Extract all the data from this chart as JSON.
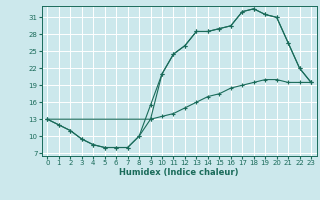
{
  "title": "",
  "xlabel": "Humidex (Indice chaleur)",
  "bg_color": "#cce8ec",
  "grid_color": "#ffffff",
  "line_color": "#1a6b5a",
  "xlim": [
    -0.5,
    23.5
  ],
  "ylim": [
    6.5,
    33
  ],
  "yticks": [
    7,
    10,
    13,
    16,
    19,
    22,
    25,
    28,
    31
  ],
  "xticks": [
    0,
    1,
    2,
    3,
    4,
    5,
    6,
    7,
    8,
    9,
    10,
    11,
    12,
    13,
    14,
    15,
    16,
    17,
    18,
    19,
    20,
    21,
    22,
    23
  ],
  "line1_x": [
    0,
    1,
    2,
    3,
    4,
    5,
    6,
    7,
    8,
    9,
    10,
    11,
    12,
    13,
    14,
    15,
    16,
    17,
    18,
    19,
    20,
    21,
    22,
    23
  ],
  "line1_y": [
    13,
    12,
    11,
    9.5,
    8.5,
    8,
    8,
    8,
    10,
    15.5,
    21,
    24.5,
    26,
    28.5,
    28.5,
    29,
    29.5,
    32,
    32.5,
    31.5,
    31,
    26.5,
    22,
    19.5
  ],
  "line2_x": [
    0,
    9,
    10,
    11,
    12,
    13,
    14,
    15,
    16,
    17,
    18,
    19,
    20,
    21,
    22,
    23
  ],
  "line2_y": [
    13,
    13,
    21,
    24.5,
    26,
    28.5,
    28.5,
    29,
    29.5,
    32,
    32.5,
    31.5,
    31,
    26.5,
    22,
    19.5
  ],
  "line3_x": [
    0,
    1,
    2,
    3,
    4,
    5,
    6,
    7,
    8,
    9,
    10,
    11,
    12,
    13,
    14,
    15,
    16,
    17,
    18,
    19,
    20,
    21,
    22,
    23
  ],
  "line3_y": [
    13,
    12,
    11,
    9.5,
    8.5,
    8,
    8,
    8,
    10,
    13,
    13.5,
    14,
    15,
    16,
    17,
    17.5,
    18.5,
    19,
    19.5,
    20,
    20,
    19.5,
    19.5,
    19.5
  ]
}
